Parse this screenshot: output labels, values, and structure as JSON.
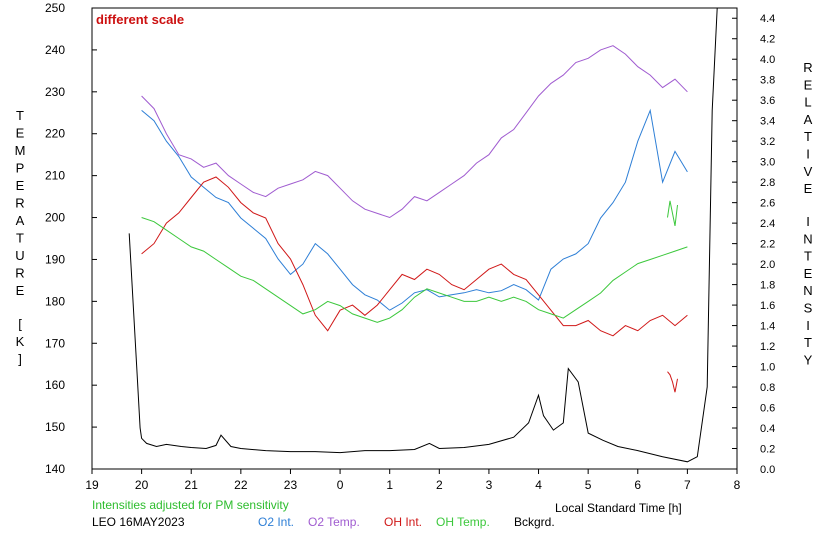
{
  "chart_data": {
    "type": "line",
    "annotation": "different scale",
    "note": "Intensities adjusted for PM sensitivity",
    "footer_id": "LEO 16MAY2023",
    "xlabel": "Local Standard Time [h]",
    "ylabel_left": "TEMPERATURE [K]",
    "ylabel_right": "RELATIVE INTENSITY",
    "x_range": [
      19,
      32
    ],
    "ylim_left": [
      140,
      250
    ],
    "ylim_right": [
      0.0,
      4.5
    ],
    "x_ticks": [
      "19",
      "20",
      "21",
      "22",
      "23",
      "0",
      "1",
      "2",
      "3",
      "4",
      "5",
      "6",
      "7",
      "8"
    ],
    "y_left_ticks": [
      "140",
      "150",
      "160",
      "170",
      "180",
      "190",
      "200",
      "210",
      "220",
      "230",
      "240",
      "250"
    ],
    "y_right_ticks": [
      "0.0",
      "0.2",
      "0.4",
      "0.6",
      "0.8",
      "1.0",
      "1.2",
      "1.4",
      "1.6",
      "1.8",
      "2.0",
      "2.2",
      "2.4",
      "2.6",
      "2.8",
      "3.0",
      "3.2",
      "3.4",
      "3.6",
      "3.8",
      "4.0",
      "4.2",
      "4.4"
    ],
    "colors": {
      "o2_int": "#2e7fd6",
      "o2_temp": "#a05cd0",
      "oh_int": "#d01818",
      "oh_temp": "#3cc83c",
      "bckgrd": "#000000",
      "annotation": "#cc1010",
      "note": "#2ebd2e"
    },
    "series": [
      {
        "name": "O2 Int.",
        "axis": "right",
        "x": [
          20.0,
          20.25,
          20.5,
          20.75,
          21.0,
          21.25,
          21.5,
          21.75,
          22.0,
          22.25,
          22.5,
          22.75,
          23.0,
          23.25,
          23.5,
          23.75,
          24.0,
          24.25,
          24.5,
          24.75,
          25.0,
          25.25,
          25.5,
          25.75,
          26.0,
          26.25,
          26.5,
          26.75,
          27.0,
          27.25,
          27.5,
          27.75,
          28.0,
          28.25,
          28.5,
          28.75,
          29.0,
          29.25,
          29.5,
          29.75,
          30.0,
          30.25,
          30.5,
          30.75,
          31.0
        ],
        "y": [
          3.5,
          3.4,
          3.2,
          3.05,
          2.85,
          2.75,
          2.65,
          2.6,
          2.45,
          2.35,
          2.25,
          2.05,
          1.9,
          2.0,
          2.2,
          2.1,
          1.95,
          1.8,
          1.7,
          1.65,
          1.55,
          1.62,
          1.72,
          1.75,
          1.68,
          1.7,
          1.72,
          1.75,
          1.72,
          1.74,
          1.8,
          1.75,
          1.65,
          1.95,
          2.05,
          2.1,
          2.2,
          2.45,
          2.6,
          2.8,
          3.2,
          3.5,
          2.8,
          3.1,
          2.9
        ]
      },
      {
        "name": "O2 Temp.",
        "axis": "left",
        "x": [
          20.0,
          20.25,
          20.5,
          20.75,
          21.0,
          21.25,
          21.5,
          21.75,
          22.0,
          22.25,
          22.5,
          22.75,
          23.0,
          23.25,
          23.5,
          23.75,
          24.0,
          24.25,
          24.5,
          24.75,
          25.0,
          25.25,
          25.5,
          25.75,
          26.0,
          26.25,
          26.5,
          26.75,
          27.0,
          27.25,
          27.5,
          27.75,
          28.0,
          28.25,
          28.5,
          28.75,
          29.0,
          29.25,
          29.5,
          29.75,
          30.0,
          30.25,
          30.5,
          30.75,
          31.0
        ],
        "y": [
          229,
          226,
          220,
          215,
          214,
          212,
          213,
          210,
          208,
          206,
          205,
          207,
          208,
          209,
          211,
          210,
          207,
          204,
          202,
          201,
          200,
          202,
          205,
          204,
          206,
          208,
          210,
          213,
          215,
          219,
          221,
          225,
          229,
          232,
          234,
          237,
          238,
          240,
          241,
          239,
          236,
          234,
          231,
          233,
          230
        ]
      },
      {
        "name": "OH Int.",
        "axis": "right",
        "x": [
          20.0,
          20.25,
          20.5,
          20.75,
          21.0,
          21.25,
          21.5,
          21.75,
          22.0,
          22.25,
          22.5,
          22.75,
          23.0,
          23.25,
          23.5,
          23.75,
          24.0,
          24.25,
          24.5,
          24.75,
          25.0,
          25.25,
          25.5,
          25.75,
          26.0,
          26.25,
          26.5,
          26.75,
          27.0,
          27.25,
          27.5,
          27.75,
          28.0,
          28.25,
          28.5,
          28.75,
          29.0,
          29.25,
          29.5,
          29.75,
          30.0,
          30.25,
          30.5,
          30.75,
          31.0
        ],
        "y": [
          2.1,
          2.2,
          2.4,
          2.5,
          2.65,
          2.8,
          2.85,
          2.75,
          2.6,
          2.5,
          2.45,
          2.2,
          2.05,
          1.8,
          1.5,
          1.35,
          1.55,
          1.6,
          1.5,
          1.6,
          1.75,
          1.9,
          1.85,
          1.95,
          1.9,
          1.8,
          1.75,
          1.85,
          1.95,
          2.0,
          1.9,
          1.85,
          1.7,
          1.55,
          1.4,
          1.4,
          1.45,
          1.35,
          1.3,
          1.4,
          1.35,
          1.45,
          1.5,
          1.4,
          1.5
        ]
      },
      {
        "name": "OH Temp.",
        "axis": "left",
        "x": [
          20.0,
          20.25,
          20.5,
          20.75,
          21.0,
          21.25,
          21.5,
          21.75,
          22.0,
          22.25,
          22.5,
          22.75,
          23.0,
          23.25,
          23.5,
          23.75,
          24.0,
          24.25,
          24.5,
          24.75,
          25.0,
          25.25,
          25.5,
          25.75,
          26.0,
          26.25,
          26.5,
          26.75,
          27.0,
          27.25,
          27.5,
          27.75,
          28.0,
          28.25,
          28.5,
          28.75,
          29.0,
          29.25,
          29.5,
          29.75,
          30.0,
          30.25,
          30.5,
          30.75,
          31.0
        ],
        "y": [
          200,
          199,
          197,
          195,
          193,
          192,
          190,
          188,
          186,
          185,
          183,
          181,
          179,
          177,
          178,
          180,
          179,
          177,
          176,
          175,
          176,
          178,
          181,
          183,
          182,
          181,
          180,
          180,
          181,
          180,
          181,
          180,
          178,
          177,
          176,
          178,
          180,
          182,
          185,
          187,
          189,
          190,
          191,
          192,
          193
        ]
      },
      {
        "name": "Bckgrd.",
        "axis": "right",
        "x": [
          19.75,
          19.9,
          19.97,
          20.0,
          20.1,
          20.3,
          20.5,
          20.8,
          21.0,
          21.3,
          21.5,
          21.6,
          21.8,
          22.0,
          22.5,
          23.0,
          23.5,
          24.0,
          24.5,
          25.0,
          25.5,
          25.8,
          26.0,
          26.5,
          27.0,
          27.5,
          27.8,
          28.0,
          28.1,
          28.3,
          28.5,
          28.6,
          28.8,
          28.9,
          29.0,
          29.3,
          29.6,
          30.0,
          30.5,
          31.0,
          31.2,
          31.4,
          31.5,
          31.6,
          31.8,
          32.0
        ],
        "y": [
          2.3,
          1.0,
          0.4,
          0.3,
          0.25,
          0.22,
          0.24,
          0.22,
          0.21,
          0.2,
          0.23,
          0.33,
          0.22,
          0.2,
          0.18,
          0.17,
          0.17,
          0.16,
          0.18,
          0.18,
          0.19,
          0.25,
          0.2,
          0.21,
          0.24,
          0.31,
          0.45,
          0.72,
          0.52,
          0.38,
          0.45,
          0.98,
          0.85,
          0.6,
          0.35,
          0.28,
          0.22,
          0.18,
          0.12,
          0.07,
          0.12,
          0.8,
          3.5,
          4.5,
          4.5,
          4.5
        ]
      }
    ],
    "fragments": [
      {
        "series": "OH Temp.",
        "axis": "left",
        "x": [
          30.6,
          30.65,
          30.7,
          30.75,
          30.8
        ],
        "y": [
          200,
          204,
          201,
          198,
          203
        ]
      },
      {
        "series": "OH Int.",
        "axis": "right",
        "x": [
          30.6,
          30.65,
          30.7,
          30.75,
          30.8
        ],
        "y": [
          0.95,
          0.92,
          0.85,
          0.75,
          0.88
        ]
      }
    ]
  }
}
